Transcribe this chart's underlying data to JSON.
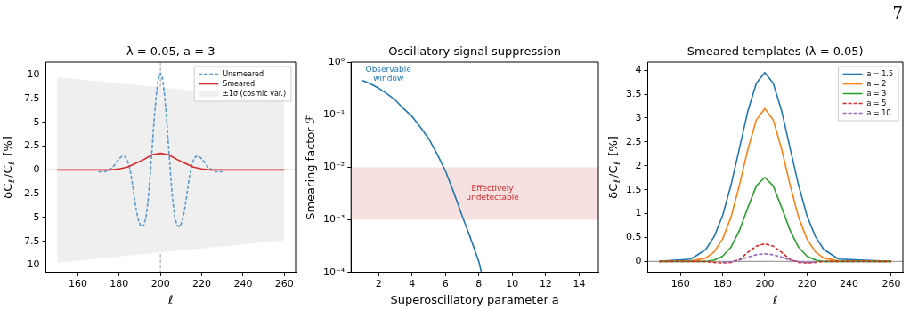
{
  "chart_data": [
    {
      "type": "line",
      "title": "λ = 0.05, a = 3",
      "xlabel": "ℓ",
      "ylabel": "δC$_{ℓ}$/C$_{ℓ}$ [%]",
      "xlim": [
        144.5,
        265.5
      ],
      "xticks": [
        160,
        180,
        200,
        220,
        240,
        260
      ],
      "ylim": [
        -10.78,
        11.34
      ],
      "yticks": [
        -10,
        -7.5,
        -5,
        -2.5,
        0,
        2.5,
        5,
        7.5,
        10
      ],
      "legend": "top right",
      "series": [
        {
          "name": "Unsmeared",
          "color": "#5b9bd0",
          "line_style": "dashed",
          "x": [
            170,
            173,
            175,
            177,
            179,
            181,
            183,
            184,
            185,
            186,
            187,
            188,
            189,
            190.5,
            192,
            193,
            194,
            195,
            196,
            197,
            198,
            199,
            200,
            201,
            202,
            203,
            204,
            205,
            206,
            207,
            208,
            209.5,
            211,
            212,
            213,
            214,
            215,
            216,
            217,
            219,
            221,
            223,
            225,
            227,
            230
          ],
          "values": [
            -0.2,
            -0.2,
            0,
            0.3,
            0.9,
            1.4,
            1.4,
            1.0,
            0.3,
            -0.8,
            -2.3,
            -3.8,
            -5.0,
            -6.0,
            -5.8,
            -5.0,
            -3.3,
            -0.7,
            2.3,
            5.4,
            7.9,
            9.6,
            10.2,
            9.6,
            7.9,
            5.4,
            2.3,
            -0.7,
            -3.3,
            -5.0,
            -5.8,
            -6.0,
            -5.0,
            -3.8,
            -2.3,
            -0.8,
            0.3,
            1.0,
            1.4,
            1.4,
            0.9,
            0.3,
            0,
            -0.2,
            -0.2
          ]
        },
        {
          "name": "Smeared",
          "color": "#d62728",
          "x": [
            150,
            170,
            176,
            180,
            184,
            188,
            192,
            196,
            200,
            204,
            208,
            212,
            216,
            220,
            224,
            230,
            260
          ],
          "values": [
            0,
            0,
            0,
            0.1,
            0.3,
            0.7,
            1.1,
            1.6,
            1.75,
            1.6,
            1.1,
            0.7,
            0.3,
            0.1,
            0,
            0,
            0
          ]
        },
        {
          "name": "±1σ (cosmic var.)",
          "color": "#efefef",
          "x": [
            150,
            260
          ],
          "values": [
            null,
            null
          ],
          "lower": [
            -9.75,
            -7.4
          ],
          "upper": [
            9.75,
            7.4
          ]
        }
      ],
      "ref_lines": [
        {
          "axis": "y",
          "value": 0,
          "color": "#a0a0a0"
        },
        {
          "axis": "x",
          "value": 200,
          "color": "#b0b0b0",
          "line_style": "dashed"
        }
      ]
    },
    {
      "type": "line",
      "title": "Oscillatory signal suppression",
      "xlabel": "Superoscillatory parameter a",
      "ylabel": "Smearing factor ℱ",
      "log": "y",
      "xlim": [
        0.35,
        15.15
      ],
      "xticks": [
        2,
        4,
        6,
        8,
        10,
        12,
        14
      ],
      "ylim": [
        0.0001,
        1
      ],
      "yticks": [
        {
          "value": 0.0001,
          "label": "10⁻⁴"
        },
        {
          "value": 0.001,
          "label": "10⁻³"
        },
        {
          "value": 0.01,
          "label": "10⁻²"
        },
        {
          "value": 0.1,
          "label": "10⁻¹"
        },
        {
          "value": 1,
          "label": "10⁰"
        }
      ],
      "series": [
        {
          "color": "#1f77b4",
          "x": [
            1,
            1.5,
            2,
            2.5,
            3,
            3.5,
            4,
            4.5,
            5,
            5.5,
            6,
            6.5,
            7,
            7.5,
            8,
            8.15
          ],
          "values": [
            0.45,
            0.39,
            0.32,
            0.25,
            0.19,
            0.13,
            0.093,
            0.058,
            0.035,
            0.018,
            0.0085,
            0.0033,
            0.0012,
            0.00045,
            0.00016,
            0.0001
          ]
        }
      ],
      "bands": [
        {
          "axis": "y",
          "from": 0.001,
          "to": 0.01,
          "label": "Effectively\nundetectable",
          "color": "#f6e0e0"
        }
      ],
      "annotations": [
        "Observable\nwindow"
      ]
    },
    {
      "type": "line",
      "title": "Smeared templates (λ = 0.05)",
      "xlabel": "ℓ",
      "ylabel": "δC$_{ℓ}$/C$_{ℓ}$ [%]",
      "xlim": [
        144.5,
        265.5
      ],
      "xticks": [
        160,
        180,
        200,
        220,
        240,
        260
      ],
      "ylim": [
        -0.23,
        4.17
      ],
      "yticks": [
        0,
        0.5,
        1,
        1.5,
        2,
        2.5,
        3,
        3.5,
        4
      ],
      "legend": "top right",
      "x": [
        150,
        165,
        172,
        176,
        180,
        184,
        188,
        192,
        196,
        200,
        204,
        208,
        212,
        216,
        220,
        224,
        228,
        235,
        260
      ],
      "series": [
        {
          "name": "a = 1.5",
          "color": "#1f77b4",
          "values": [
            0,
            0.05,
            0.25,
            0.52,
            0.96,
            1.6,
            2.37,
            3.15,
            3.73,
            3.95,
            3.73,
            3.15,
            2.37,
            1.6,
            0.96,
            0.52,
            0.25,
            0.05,
            0
          ]
        },
        {
          "name": "a = 2",
          "color": "#ff7f0e",
          "values": [
            0,
            0.01,
            0.07,
            0.2,
            0.47,
            0.93,
            1.6,
            2.35,
            2.96,
            3.2,
            2.96,
            2.35,
            1.6,
            0.93,
            0.47,
            0.2,
            0.07,
            0.01,
            0
          ]
        },
        {
          "name": "a = 3",
          "color": "#2ca02c",
          "values": [
            0,
            0,
            0,
            0.03,
            0.11,
            0.3,
            0.65,
            1.13,
            1.58,
            1.76,
            1.58,
            1.13,
            0.65,
            0.3,
            0.11,
            0.03,
            0,
            0,
            0
          ]
        },
        {
          "name": "a = 5",
          "color": "#d62728",
          "line_style": "dashed",
          "values": [
            0,
            0,
            0,
            -0.02,
            -0.03,
            -0.02,
            0.04,
            0.19,
            0.32,
            0.37,
            0.32,
            0.19,
            0.04,
            -0.02,
            -0.03,
            -0.02,
            0,
            0,
            0
          ]
        },
        {
          "name": "a = 10",
          "color": "#9467bd",
          "line_style": "dashed",
          "values": [
            null,
            null,
            null,
            null,
            -0.02,
            0,
            0.03,
            0.09,
            0.14,
            0.16,
            0.14,
            0.09,
            0.03,
            0,
            -0.02,
            -0.01,
            null,
            null,
            null
          ]
        }
      ],
      "ref_lines": [
        {
          "axis": "y",
          "value": 0,
          "color": "#a0a0a0"
        }
      ],
      "annotations": [
        "7"
      ]
    }
  ]
}
